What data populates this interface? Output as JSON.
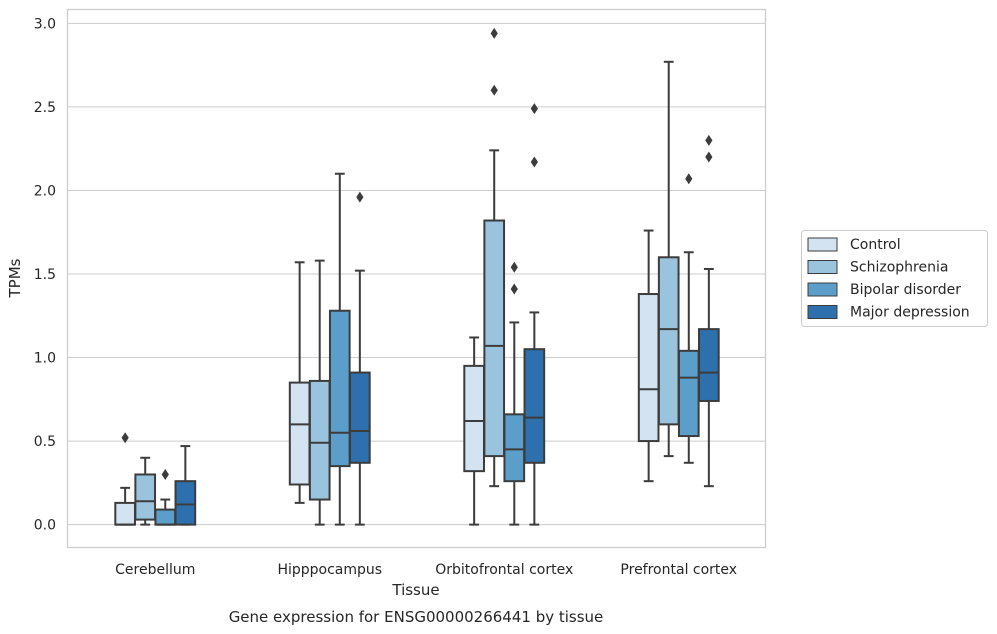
{
  "chart_data": {
    "type": "box",
    "title": "",
    "caption": "Gene expression for ENSG00000266441 by tissue",
    "xlabel": "Tissue",
    "ylabel": "TPMs",
    "ylim": [
      -0.14,
      3.08
    ],
    "yticks": [
      0.0,
      0.5,
      1.0,
      1.5,
      2.0,
      2.5,
      3.0
    ],
    "ytick_labels": [
      "0.0",
      "0.5",
      "1.0",
      "1.5",
      "2.0",
      "2.5",
      "3.0"
    ],
    "grid": "horizontal",
    "legend_position": "right",
    "categories": [
      "Cerebellum",
      "Hipppocampus",
      "Orbitofrontal cortex",
      "Prefrontal cortex"
    ],
    "series": [
      {
        "name": "Control",
        "color": "#d3e3f2",
        "boxes": [
          {
            "min": 0.0,
            "q1": 0.0,
            "median": 0.0,
            "q3": 0.13,
            "max": 0.22,
            "outliers": [
              0.52
            ]
          },
          {
            "min": 0.13,
            "q1": 0.24,
            "median": 0.6,
            "q3": 0.85,
            "max": 1.57,
            "outliers": []
          },
          {
            "min": 0.0,
            "q1": 0.32,
            "median": 0.62,
            "q3": 0.95,
            "max": 1.12,
            "outliers": []
          },
          {
            "min": 0.26,
            "q1": 0.5,
            "median": 0.81,
            "q3": 1.38,
            "max": 1.76,
            "outliers": []
          }
        ]
      },
      {
        "name": "Schizophrenia",
        "color": "#9ac4de",
        "boxes": [
          {
            "min": 0.0,
            "q1": 0.03,
            "median": 0.14,
            "q3": 0.3,
            "max": 0.4,
            "outliers": []
          },
          {
            "min": 0.0,
            "q1": 0.15,
            "median": 0.49,
            "q3": 0.86,
            "max": 1.58,
            "outliers": []
          },
          {
            "min": 0.23,
            "q1": 0.41,
            "median": 1.07,
            "q3": 1.82,
            "max": 2.24,
            "outliers": [
              2.6,
              2.94
            ]
          },
          {
            "min": 0.41,
            "q1": 0.6,
            "median": 1.17,
            "q3": 1.6,
            "max": 2.77,
            "outliers": []
          }
        ]
      },
      {
        "name": "Bipolar disorder",
        "color": "#5b9ec9",
        "boxes": [
          {
            "min": 0.0,
            "q1": 0.0,
            "median": 0.0,
            "q3": 0.09,
            "max": 0.15,
            "outliers": [
              0.3
            ]
          },
          {
            "min": 0.0,
            "q1": 0.35,
            "median": 0.55,
            "q3": 1.28,
            "max": 2.1,
            "outliers": []
          },
          {
            "min": 0.0,
            "q1": 0.26,
            "median": 0.45,
            "q3": 0.66,
            "max": 1.21,
            "outliers": [
              1.41,
              1.54
            ]
          },
          {
            "min": 0.37,
            "q1": 0.53,
            "median": 0.88,
            "q3": 1.04,
            "max": 1.63,
            "outliers": [
              2.07
            ]
          }
        ]
      },
      {
        "name": "Major depression",
        "color": "#2e6fad",
        "boxes": [
          {
            "min": 0.0,
            "q1": 0.0,
            "median": 0.12,
            "q3": 0.26,
            "max": 0.47,
            "outliers": []
          },
          {
            "min": 0.0,
            "q1": 0.37,
            "median": 0.56,
            "q3": 0.91,
            "max": 1.52,
            "outliers": [
              1.96
            ]
          },
          {
            "min": 0.0,
            "q1": 0.37,
            "median": 0.64,
            "q3": 1.05,
            "max": 1.27,
            "outliers": [
              2.17,
              2.49
            ]
          },
          {
            "min": 0.23,
            "q1": 0.74,
            "median": 0.91,
            "q3": 1.17,
            "max": 1.53,
            "outliers": [
              2.2,
              2.3
            ]
          }
        ]
      }
    ]
  }
}
